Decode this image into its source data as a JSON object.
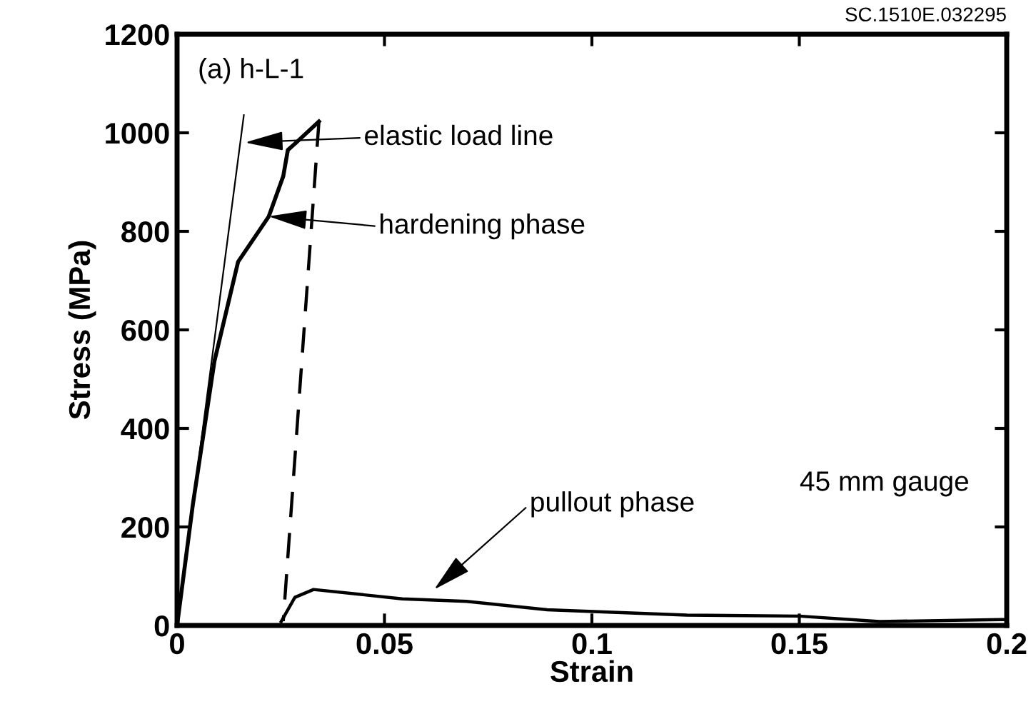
{
  "chart_data": {
    "type": "line",
    "xlabel": "Strain",
    "ylabel": "Stress (MPa)",
    "xlim": [
      0,
      0.2
    ],
    "ylim": [
      0,
      1200
    ],
    "xticks": [
      0,
      0.05,
      0.1,
      0.15,
      0.2
    ],
    "yticks": [
      0,
      200,
      400,
      600,
      800,
      1000,
      1200
    ],
    "grid": false,
    "legend": false,
    "marker": "none",
    "series": [
      {
        "color": "#000000",
        "line_style": "solid",
        "x": [
          0,
          0.0038,
          0.009,
          0.0147,
          0.0221,
          0.0256,
          0.0267,
          0.0287,
          0.0342
        ],
        "values": [
          0,
          245,
          536,
          738,
          830,
          912,
          965,
          980,
          1023
        ]
      },
      {
        "color": "#000000",
        "line_style": "solid",
        "x": [
          0,
          0.0161
        ],
        "values": [
          0,
          1036
        ]
      },
      {
        "color": "#000000",
        "line_style": "dashed",
        "x": [
          0.0342,
          0.0256
        ],
        "values": [
          1023,
          9
        ]
      },
      {
        "color": "#000000",
        "line_style": "solid",
        "x": [
          0.0251,
          0.0284,
          0.0329,
          0.0543,
          0.0698,
          0.0892,
          0.1229,
          0.15,
          0.1694,
          0.1986,
          0.2
        ],
        "values": [
          8,
          57,
          73,
          54,
          49,
          32,
          21,
          19,
          8,
          12,
          12
        ]
      }
    ],
    "annotations": [
      "(a) h-L-1",
      "elastic load line",
      "hardening phase",
      "pullout phase",
      "45 mm gauge",
      "SC.1510E.032295"
    ]
  }
}
